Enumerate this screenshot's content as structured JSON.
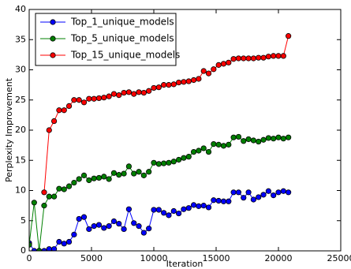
{
  "chart_data": {
    "type": "line",
    "x_label": "Iteration",
    "y_label": "Perplexity Improvement",
    "x": [
      0,
      400,
      800,
      1200,
      1600,
      2000,
      2400,
      2800,
      3200,
      3600,
      4000,
      4400,
      4800,
      5200,
      5600,
      6000,
      6400,
      6800,
      7200,
      7600,
      8000,
      8400,
      8800,
      9200,
      9600,
      10000,
      10400,
      10800,
      11200,
      11600,
      12000,
      12400,
      12800,
      13200,
      13600,
      14000,
      14400,
      14800,
      15200,
      15600,
      16000,
      16400,
      16800,
      17200,
      17600,
      18000,
      18400,
      18800,
      19200,
      19600,
      20000,
      20400,
      20800
    ],
    "series": [
      {
        "name": "Top_1_unique_models",
        "color": "#0000ff",
        "values": [
          1.3,
          0,
          0,
          0,
          0.3,
          0.3,
          1.5,
          1.2,
          1.5,
          2.7,
          5.3,
          5.6,
          3.6,
          4.1,
          4.3,
          3.8,
          4.1,
          4.9,
          4.5,
          3.6,
          6.9,
          4.6,
          4.1,
          3.0,
          3.7,
          6.8,
          6.8,
          6.3,
          5.9,
          6.6,
          6.2,
          6.9,
          7.1,
          7.6,
          7.4,
          7.5,
          7.2,
          8.4,
          8.3,
          8.2,
          8.2,
          9.7,
          9.7,
          8.8,
          9.7,
          8.5,
          8.9,
          9.3,
          9.9,
          9.2,
          9.7,
          9.9,
          9.7
        ]
      },
      {
        "name": "Top_5_unique_models",
        "color": "#008000",
        "values": [
          1,
          8,
          0,
          7.5,
          9,
          9,
          10.3,
          10.2,
          10.7,
          11.3,
          11.9,
          12.5,
          11.7,
          12,
          12.1,
          12.3,
          11.9,
          12.9,
          12.6,
          12.8,
          14,
          12.8,
          13.1,
          12.5,
          13.1,
          14.6,
          14.4,
          14.5,
          14.6,
          14.8,
          15.1,
          15.4,
          15.6,
          16.4,
          16.6,
          17.0,
          16.4,
          17.7,
          17.6,
          17.4,
          17.6,
          18.8,
          18.9,
          18.2,
          18.5,
          18.3,
          18.1,
          18.4,
          18.7,
          18.6,
          18.8,
          18.6,
          18.8
        ]
      },
      {
        "name": "Top_15_unique_models",
        "color": "#ff0000",
        "values": [
          null,
          null,
          null,
          9.7,
          20,
          21.5,
          23.3,
          23.3,
          24,
          25,
          25,
          24.6,
          25.2,
          25.2,
          25.3,
          25.4,
          25.6,
          26.0,
          25.8,
          26.2,
          26.3,
          26.0,
          26.3,
          26.2,
          26.5,
          27,
          27.1,
          27.5,
          27.5,
          27.6,
          27.9,
          28,
          28.1,
          28.3,
          28.5,
          29.8,
          29.4,
          30.1,
          30.8,
          31.0,
          31.2,
          31.8,
          31.9,
          31.9,
          31.9,
          31.9,
          32,
          32,
          32.2,
          32.3,
          32.3,
          32.3,
          35.6
        ]
      }
    ],
    "xlim": [
      0,
      25000
    ],
    "xticks": [
      0,
      5000,
      10000,
      15000,
      20000,
      25000
    ],
    "ylim": [
      0,
      40
    ],
    "yticks": [
      0,
      5,
      10,
      15,
      20,
      25,
      30,
      35,
      40
    ],
    "legend": "upper left",
    "markers": true
  }
}
